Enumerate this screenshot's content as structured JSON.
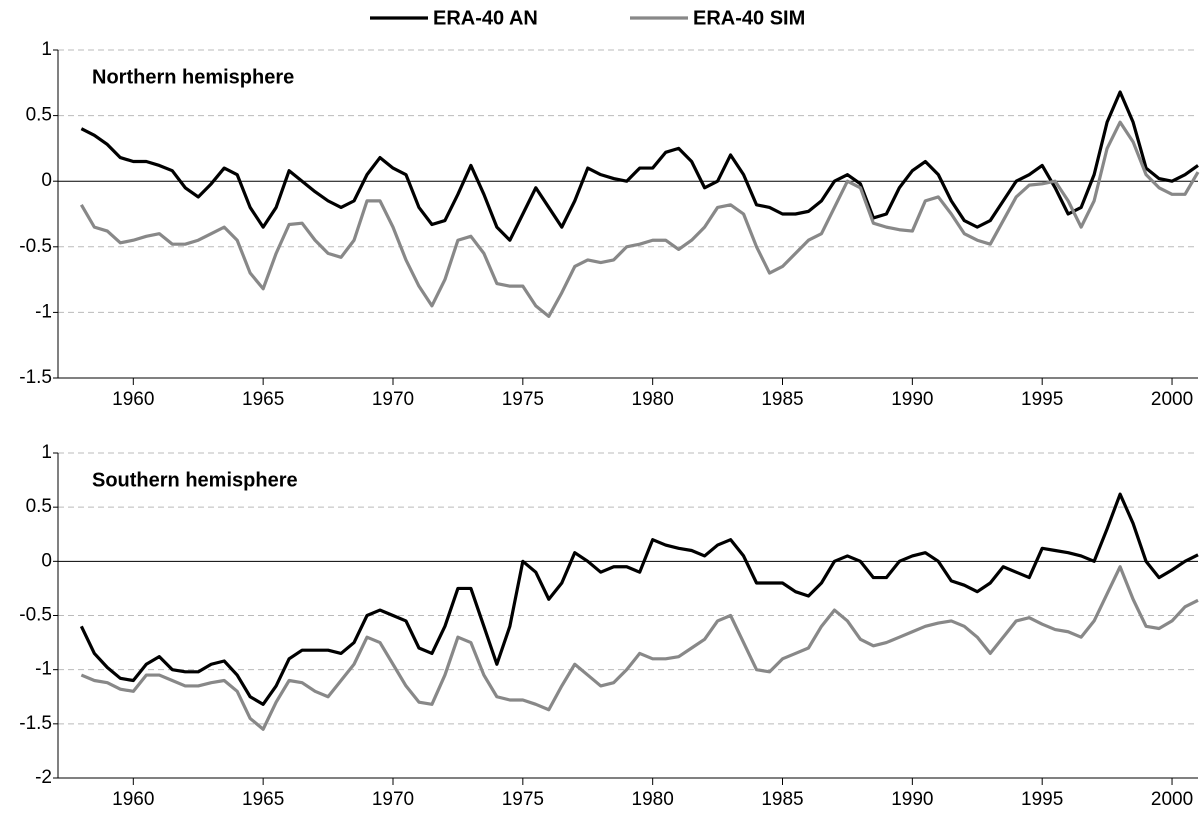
{
  "chart_data": [
    {
      "type": "line",
      "title": "Northern hemisphere",
      "x": [
        1958,
        1958.5,
        1959,
        1959.5,
        1960,
        1960.5,
        1961,
        1961.5,
        1962,
        1962.5,
        1963,
        1963.5,
        1964,
        1964.5,
        1965,
        1965.5,
        1966,
        1966.5,
        1967,
        1967.5,
        1968,
        1968.5,
        1969,
        1969.5,
        1970,
        1970.5,
        1971,
        1971.5,
        1972,
        1972.5,
        1973,
        1973.5,
        1974,
        1974.5,
        1975,
        1975.5,
        1976,
        1976.5,
        1977,
        1977.5,
        1978,
        1978.5,
        1979,
        1979.5,
        1980,
        1980.5,
        1981,
        1981.5,
        1982,
        1982.5,
        1983,
        1983.5,
        1984,
        1984.5,
        1985,
        1985.5,
        1986,
        1986.5,
        1987,
        1987.5,
        1988,
        1988.5,
        1989,
        1989.5,
        1990,
        1990.5,
        1991,
        1991.5,
        1992,
        1992.5,
        1993,
        1993.5,
        1994,
        1994.5,
        1995,
        1995.5,
        1996,
        1996.5,
        1997,
        1997.5,
        1998,
        1998.5,
        1999,
        1999.5,
        2000,
        2000.5,
        2001
      ],
      "series": [
        {
          "name": "ERA-40 AN",
          "color": "#000000",
          "values": [
            0.4,
            0.35,
            0.28,
            0.18,
            0.15,
            0.15,
            0.12,
            0.08,
            -0.05,
            -0.12,
            -0.02,
            0.1,
            0.05,
            -0.2,
            -0.35,
            -0.2,
            0.08,
            0.0,
            -0.08,
            -0.15,
            -0.2,
            -0.15,
            0.05,
            0.18,
            0.1,
            0.05,
            -0.2,
            -0.33,
            -0.3,
            -0.1,
            0.12,
            -0.1,
            -0.35,
            -0.45,
            -0.25,
            -0.05,
            -0.2,
            -0.35,
            -0.15,
            0.1,
            0.05,
            0.02,
            0.0,
            0.1,
            0.1,
            0.22,
            0.25,
            0.15,
            -0.05,
            0.0,
            0.2,
            0.05,
            -0.18,
            -0.2,
            -0.25,
            -0.25,
            -0.23,
            -0.15,
            0.0,
            0.05,
            -0.02,
            -0.28,
            -0.25,
            -0.05,
            0.08,
            0.15,
            0.05,
            -0.15,
            -0.3,
            -0.35,
            -0.3,
            -0.15,
            0.0,
            0.05,
            0.12,
            -0.05,
            -0.25,
            -0.2,
            0.05,
            0.45,
            0.68,
            0.45,
            0.1,
            0.02,
            0.0,
            0.05,
            0.12
          ]
        },
        {
          "name": "ERA-40 SIM",
          "color": "#888888",
          "values": [
            -0.18,
            -0.35,
            -0.38,
            -0.47,
            -0.45,
            -0.42,
            -0.4,
            -0.48,
            -0.48,
            -0.45,
            -0.4,
            -0.35,
            -0.45,
            -0.7,
            -0.82,
            -0.55,
            -0.33,
            -0.32,
            -0.45,
            -0.55,
            -0.58,
            -0.45,
            -0.15,
            -0.15,
            -0.35,
            -0.6,
            -0.8,
            -0.95,
            -0.75,
            -0.45,
            -0.42,
            -0.55,
            -0.78,
            -0.8,
            -0.8,
            -0.95,
            -1.03,
            -0.85,
            -0.65,
            -0.6,
            -0.62,
            -0.6,
            -0.5,
            -0.48,
            -0.45,
            -0.45,
            -0.52,
            -0.45,
            -0.35,
            -0.2,
            -0.18,
            -0.25,
            -0.5,
            -0.7,
            -0.65,
            -0.55,
            -0.45,
            -0.4,
            -0.2,
            0.0,
            -0.05,
            -0.32,
            -0.35,
            -0.37,
            -0.38,
            -0.15,
            -0.12,
            -0.25,
            -0.4,
            -0.45,
            -0.48,
            -0.3,
            -0.12,
            -0.03,
            -0.02,
            0.0,
            -0.15,
            -0.35,
            -0.15,
            0.25,
            0.45,
            0.3,
            0.05,
            -0.05,
            -0.1,
            -0.1,
            0.07
          ]
        }
      ],
      "xlim": [
        1957.1,
        2001
      ],
      "xticks": [
        1960,
        1965,
        1970,
        1975,
        1980,
        1985,
        1990,
        1995,
        2000
      ],
      "ylim": [
        -1.5,
        1
      ],
      "yticks": [
        -1.5,
        -1,
        -0.5,
        0,
        0.5,
        1
      ],
      "grid": "dashed",
      "legend": "top"
    },
    {
      "type": "line",
      "title": "Southern hemisphere",
      "x": [
        1958,
        1958.5,
        1959,
        1959.5,
        1960,
        1960.5,
        1961,
        1961.5,
        1962,
        1962.5,
        1963,
        1963.5,
        1964,
        1964.5,
        1965,
        1965.5,
        1966,
        1966.5,
        1967,
        1967.5,
        1968,
        1968.5,
        1969,
        1969.5,
        1970,
        1970.5,
        1971,
        1971.5,
        1972,
        1972.5,
        1973,
        1973.5,
        1974,
        1974.5,
        1975,
        1975.5,
        1976,
        1976.5,
        1977,
        1977.5,
        1978,
        1978.5,
        1979,
        1979.5,
        1980,
        1980.5,
        1981,
        1981.5,
        1982,
        1982.5,
        1983,
        1983.5,
        1984,
        1984.5,
        1985,
        1985.5,
        1986,
        1986.5,
        1987,
        1987.5,
        1988,
        1988.5,
        1989,
        1989.5,
        1990,
        1990.5,
        1991,
        1991.5,
        1992,
        1992.5,
        1993,
        1993.5,
        1994,
        1994.5,
        1995,
        1995.5,
        1996,
        1996.5,
        1997,
        1997.5,
        1998,
        1998.5,
        1999,
        1999.5,
        2000,
        2000.5,
        2001
      ],
      "series": [
        {
          "color": "#000000",
          "values": [
            -0.6,
            -0.85,
            -0.98,
            -1.08,
            -1.1,
            -0.95,
            -0.88,
            -1.0,
            -1.02,
            -1.02,
            -0.95,
            -0.92,
            -1.05,
            -1.25,
            -1.32,
            -1.15,
            -0.9,
            -0.82,
            -0.82,
            -0.82,
            -0.85,
            -0.75,
            -0.5,
            -0.45,
            -0.5,
            -0.55,
            -0.8,
            -0.85,
            -0.6,
            -0.25,
            -0.25,
            -0.6,
            -0.95,
            -0.6,
            0.0,
            -0.1,
            -0.35,
            -0.2,
            0.08,
            0.0,
            -0.1,
            -0.05,
            -0.05,
            -0.1,
            0.2,
            0.15,
            0.12,
            0.1,
            0.05,
            0.15,
            0.2,
            0.05,
            -0.2,
            -0.2,
            -0.2,
            -0.28,
            -0.32,
            -0.2,
            0.0,
            0.05,
            0.0,
            -0.15,
            -0.15,
            0.0,
            0.05,
            0.08,
            0.0,
            -0.18,
            -0.22,
            -0.28,
            -0.2,
            -0.05,
            -0.1,
            -0.15,
            0.12,
            0.1,
            0.08,
            0.05,
            0.0,
            0.3,
            0.62,
            0.35,
            0.0,
            -0.15,
            -0.08,
            0.0,
            0.06
          ]
        },
        {
          "color": "#888888",
          "values": [
            -1.05,
            -1.1,
            -1.12,
            -1.18,
            -1.2,
            -1.05,
            -1.05,
            -1.1,
            -1.15,
            -1.15,
            -1.12,
            -1.1,
            -1.2,
            -1.45,
            -1.55,
            -1.3,
            -1.1,
            -1.12,
            -1.2,
            -1.25,
            -1.1,
            -0.95,
            -0.7,
            -0.75,
            -0.95,
            -1.15,
            -1.3,
            -1.32,
            -1.05,
            -0.7,
            -0.75,
            -1.05,
            -1.25,
            -1.28,
            -1.28,
            -1.32,
            -1.37,
            -1.15,
            -0.95,
            -1.05,
            -1.15,
            -1.12,
            -1.0,
            -0.85,
            -0.9,
            -0.9,
            -0.88,
            -0.8,
            -0.72,
            -0.55,
            -0.5,
            -0.75,
            -1.0,
            -1.02,
            -0.9,
            -0.85,
            -0.8,
            -0.6,
            -0.45,
            -0.55,
            -0.72,
            -0.78,
            -0.75,
            -0.7,
            -0.65,
            -0.6,
            -0.57,
            -0.55,
            -0.6,
            -0.7,
            -0.85,
            -0.7,
            -0.55,
            -0.52,
            -0.58,
            -0.63,
            -0.65,
            -0.7,
            -0.55,
            -0.3,
            -0.05,
            -0.35,
            -0.6,
            -0.62,
            -0.55,
            -0.42,
            -0.36
          ]
        }
      ],
      "xlim": [
        1957.1,
        2001
      ],
      "xticks": [
        1960,
        1965,
        1970,
        1975,
        1980,
        1985,
        1990,
        1995,
        2000
      ],
      "ylim": [
        -2,
        1
      ],
      "yticks": [
        -2,
        -1.5,
        -1,
        -0.5,
        0,
        0.5,
        1
      ],
      "grid": "dashed"
    }
  ]
}
